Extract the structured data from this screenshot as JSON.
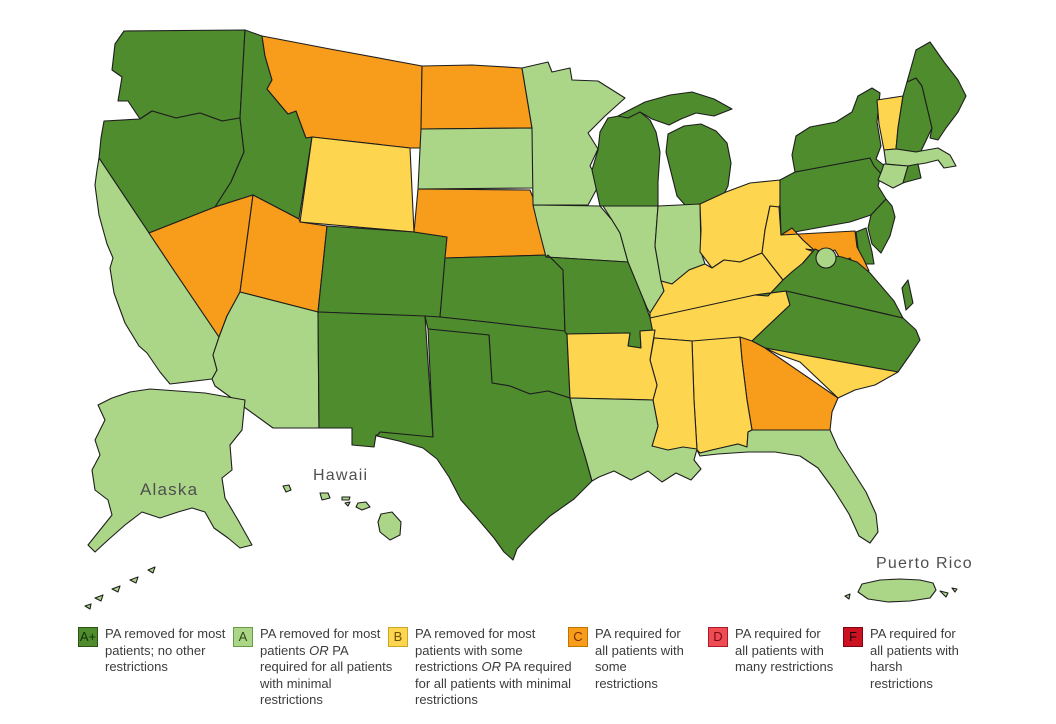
{
  "map": {
    "border_color": "#1e1e1e",
    "background": "#ffffff",
    "labels": {
      "alaska": "Alaska",
      "hawaii": "Hawaii",
      "puerto_rico": "Puerto Rico"
    }
  },
  "legend": {
    "items": [
      {
        "code": "A+",
        "label": "PA removed for most patients; no other restrictions",
        "color": "#4e8c2e",
        "border_color": "#2c5214",
        "letter_color": "#16300a"
      },
      {
        "code": "A",
        "label": "PA removed for most patients OR PA required for all patients with minimal restrictions",
        "color": "#abd687",
        "border_color": "#6a9a42",
        "letter_color": "#2f4a12"
      },
      {
        "code": "B",
        "label": "PA removed for most patients with some restrictions OR PA required for all patients with minimal restrictions",
        "color": "#fdd54e",
        "border_color": "#caa528",
        "letter_color": "#6e5200"
      },
      {
        "code": "C",
        "label": "PA required for all patients with some restrictions",
        "color": "#f89c1b",
        "border_color": "#c07400",
        "letter_color": "#7d2b00"
      },
      {
        "code": "D",
        "label": "PA required for all patients with many restrictions",
        "color": "#ee4b53",
        "border_color": "#aa1a2a",
        "letter_color": "#7a0a14"
      },
      {
        "code": "F",
        "label": "PA required for all patients with harsh restrictions",
        "color": "#cc1122",
        "border_color": "#7e0612",
        "letter_color": "#1a0505"
      }
    ]
  },
  "states": [
    {
      "abbr": "WA",
      "name": "Washington",
      "grade": "A+"
    },
    {
      "abbr": "OR",
      "name": "Oregon",
      "grade": "A+"
    },
    {
      "abbr": "CA",
      "name": "California",
      "grade": "A"
    },
    {
      "abbr": "ID",
      "name": "Idaho",
      "grade": "A+"
    },
    {
      "abbr": "NV",
      "name": "Nevada",
      "grade": "C"
    },
    {
      "abbr": "MT",
      "name": "Montana",
      "grade": "C"
    },
    {
      "abbr": "WY",
      "name": "Wyoming",
      "grade": "B"
    },
    {
      "abbr": "UT",
      "name": "Utah",
      "grade": "C"
    },
    {
      "abbr": "CO",
      "name": "Colorado",
      "grade": "A+"
    },
    {
      "abbr": "AZ",
      "name": "Arizona",
      "grade": "A"
    },
    {
      "abbr": "NM",
      "name": "New Mexico",
      "grade": "A+"
    },
    {
      "abbr": "ND",
      "name": "North Dakota",
      "grade": "C"
    },
    {
      "abbr": "SD",
      "name": "South Dakota",
      "grade": "A"
    },
    {
      "abbr": "NE",
      "name": "Nebraska",
      "grade": "C"
    },
    {
      "abbr": "KS",
      "name": "Kansas",
      "grade": "A+"
    },
    {
      "abbr": "OK",
      "name": "Oklahoma",
      "grade": "A+"
    },
    {
      "abbr": "TX",
      "name": "Texas",
      "grade": "A+"
    },
    {
      "abbr": "MN",
      "name": "Minnesota",
      "grade": "A"
    },
    {
      "abbr": "IA",
      "name": "Iowa",
      "grade": "A"
    },
    {
      "abbr": "MO",
      "name": "Missouri",
      "grade": "A+"
    },
    {
      "abbr": "WI",
      "name": "Wisconsin",
      "grade": "A+"
    },
    {
      "abbr": "MI",
      "name": "Michigan",
      "grade": "A+"
    },
    {
      "abbr": "IL",
      "name": "Illinois",
      "grade": "A"
    },
    {
      "abbr": "IN",
      "name": "Indiana",
      "grade": "A"
    },
    {
      "abbr": "OH",
      "name": "Ohio",
      "grade": "B"
    },
    {
      "abbr": "KY",
      "name": "Kentucky",
      "grade": "B"
    },
    {
      "abbr": "TN",
      "name": "Tennessee",
      "grade": "B"
    },
    {
      "abbr": "WV",
      "name": "West Virginia",
      "grade": "B"
    },
    {
      "abbr": "PA",
      "name": "Pennsylvania",
      "grade": "A+"
    },
    {
      "abbr": "NY",
      "name": "New York",
      "grade": "A+"
    },
    {
      "abbr": "VT",
      "name": "Vermont",
      "grade": "B"
    },
    {
      "abbr": "NH",
      "name": "New Hampshire",
      "grade": "A+"
    },
    {
      "abbr": "ME",
      "name": "Maine",
      "grade": "A+"
    },
    {
      "abbr": "MA",
      "name": "Massachusetts",
      "grade": "A"
    },
    {
      "abbr": "CT",
      "name": "Connecticut",
      "grade": "A"
    },
    {
      "abbr": "RI",
      "name": "Rhode Island",
      "grade": "A+"
    },
    {
      "abbr": "NJ",
      "name": "New Jersey",
      "grade": "A+"
    },
    {
      "abbr": "DE",
      "name": "Delaware",
      "grade": "A+"
    },
    {
      "abbr": "MD",
      "name": "Maryland",
      "grade": "C"
    },
    {
      "abbr": "VA",
      "name": "Virginia",
      "grade": "A+"
    },
    {
      "abbr": "DC",
      "name": "District of Columbia",
      "grade": "A"
    },
    {
      "abbr": "NC",
      "name": "North Carolina",
      "grade": "A+"
    },
    {
      "abbr": "SC",
      "name": "South Carolina",
      "grade": "B"
    },
    {
      "abbr": "GA",
      "name": "Georgia",
      "grade": "C"
    },
    {
      "abbr": "AL",
      "name": "Alabama",
      "grade": "B"
    },
    {
      "abbr": "MS",
      "name": "Mississippi",
      "grade": "B"
    },
    {
      "abbr": "AR",
      "name": "Arkansas",
      "grade": "B"
    },
    {
      "abbr": "LA",
      "name": "Louisiana",
      "grade": "A"
    },
    {
      "abbr": "FL",
      "name": "Florida",
      "grade": "A"
    },
    {
      "abbr": "AK",
      "name": "Alaska",
      "grade": "A"
    },
    {
      "abbr": "HI",
      "name": "Hawaii",
      "grade": "A"
    },
    {
      "abbr": "PR",
      "name": "Puerto Rico",
      "grade": "A"
    }
  ]
}
